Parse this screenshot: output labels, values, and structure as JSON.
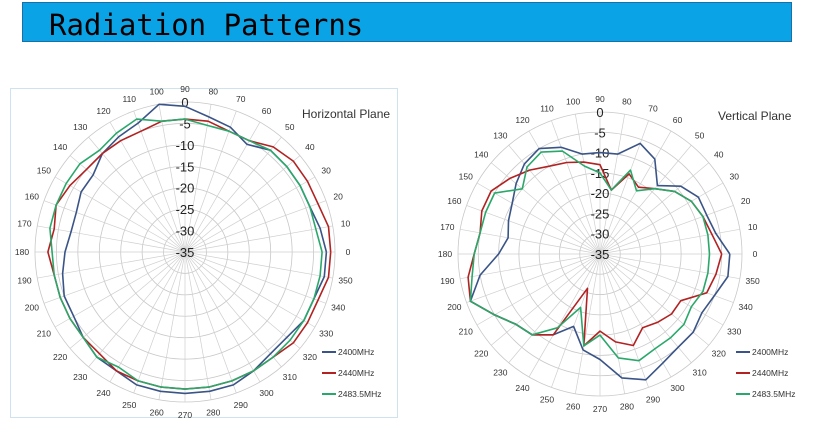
{
  "banner": {
    "title": "Radiation Patterns"
  },
  "chart_data": [
    {
      "type": "polar-line",
      "title": "Horizontal Plane",
      "angle_labels": [
        "0",
        "10",
        "20",
        "30",
        "40",
        "50",
        "60",
        "70",
        "80",
        "90",
        "100",
        "110",
        "120",
        "130",
        "140",
        "150",
        "160",
        "170",
        "180",
        "190",
        "200",
        "210",
        "220",
        "230",
        "240",
        "250",
        "260",
        "270",
        "280",
        "290",
        "300",
        "310",
        "320",
        "330",
        "340",
        "350"
      ],
      "ring_labels": [
        "0",
        "-5",
        "-10",
        "-15",
        "-20",
        "-25",
        "-30",
        "-35"
      ],
      "r_range": [
        -35,
        0
      ],
      "angles": [
        0,
        10,
        20,
        30,
        40,
        50,
        60,
        70,
        80,
        90,
        100,
        110,
        120,
        130,
        140,
        150,
        160,
        170,
        180,
        190,
        200,
        210,
        220,
        230,
        240,
        250,
        260,
        270,
        280,
        290,
        300,
        310,
        320,
        330,
        340,
        350
      ],
      "series": [
        {
          "name": "2400MHz",
          "color": "#3a5487",
          "values": [
            -2,
            -3,
            -4,
            -4,
            -4,
            -4,
            -6,
            -4,
            -3,
            -1,
            0,
            -3,
            -4,
            -5,
            -7,
            -7,
            -8,
            -8,
            -7,
            -6,
            -5,
            -5,
            -4,
            -3,
            -3,
            -2,
            -2,
            -2,
            -2,
            -2,
            -3,
            -4,
            -4,
            -3,
            -3,
            -2
          ]
        },
        {
          "name": "2440MHz",
          "color": "#b22222",
          "values": [
            -1,
            -1,
            -2,
            -2,
            -2,
            -3,
            -5,
            -5,
            -4,
            -4,
            -4,
            -5,
            -5,
            -5,
            -5,
            -4,
            -3,
            -4,
            -3,
            -4,
            -4,
            -4,
            -4,
            -4,
            -3,
            -3,
            -3,
            -3,
            -3,
            -3,
            -3,
            -3,
            -2,
            -2,
            -2,
            -1
          ]
        },
        {
          "name": "2483.5MHz",
          "color": "#2aa86b",
          "values": [
            -3,
            -4,
            -4,
            -4,
            -4,
            -4,
            -5,
            -5,
            -5,
            -4,
            -4,
            -2,
            -3,
            -4,
            -3,
            -3,
            -3,
            -3,
            -4,
            -4,
            -4,
            -4,
            -4,
            -3,
            -4,
            -3,
            -3,
            -3,
            -3,
            -3,
            -3,
            -3,
            -3,
            -3,
            -3,
            -3
          ]
        }
      ]
    },
    {
      "type": "polar-line",
      "title": "Vertical Plane",
      "angle_labels": [
        "0",
        "10",
        "20",
        "30",
        "40",
        "50",
        "60",
        "70",
        "80",
        "90",
        "100",
        "110",
        "120",
        "130",
        "140",
        "150",
        "160",
        "170",
        "180",
        "190",
        "200",
        "210",
        "220",
        "230",
        "240",
        "250",
        "260",
        "270",
        "280",
        "290",
        "300",
        "310",
        "320",
        "330",
        "340",
        "350"
      ],
      "ring_labels": [
        "0",
        "-5",
        "-10",
        "-15",
        "-20",
        "-25",
        "-30",
        "-35"
      ],
      "r_range": [
        -35,
        0
      ],
      "angles": [
        0,
        10,
        20,
        30,
        40,
        50,
        60,
        70,
        80,
        90,
        100,
        110,
        120,
        130,
        140,
        150,
        160,
        170,
        180,
        190,
        200,
        210,
        220,
        230,
        240,
        250,
        260,
        270,
        280,
        290,
        300,
        310,
        320,
        330,
        340,
        350
      ],
      "series": [
        {
          "name": "2400MHz",
          "color": "#3a5487",
          "values": [
            -3,
            -6,
            -7,
            -7,
            -9,
            -13,
            -8,
            -6,
            -10,
            -10,
            -10,
            -7,
            -5,
            -6,
            -8,
            -10,
            -11,
            -12,
            -10,
            -5,
            -1,
            -5,
            -8,
            -9,
            -12,
            -16,
            -11,
            -9,
            -4,
            -2,
            -4,
            -5,
            -5,
            -6,
            -5,
            -3
          ]
        },
        {
          "name": "2440MHz",
          "color": "#b22222",
          "values": [
            -5,
            -7,
            -8,
            -9,
            -11,
            -14,
            -16,
            -14,
            -19,
            -13,
            -12,
            -11,
            -10,
            -8,
            -6,
            -4,
            -4,
            -5,
            -4,
            -2,
            -1,
            -5,
            -8,
            -9,
            -12,
            -26,
            -12,
            -16,
            -13,
            -11,
            -14,
            -13,
            -12,
            -12,
            -7,
            -6
          ]
        },
        {
          "name": "2483.5MHz",
          "color": "#2aa86b",
          "values": [
            -8,
            -8,
            -8,
            -9,
            -11,
            -14,
            -17,
            -13,
            -19,
            -15,
            -13,
            -8,
            -6,
            -7,
            -10,
            -5,
            -5,
            -5,
            -4,
            -3,
            -1,
            -5,
            -8,
            -9,
            -14,
            -21,
            -12,
            -15,
            -9,
            -7,
            -8,
            -8,
            -8,
            -9,
            -8,
            -8
          ]
        }
      ]
    }
  ]
}
